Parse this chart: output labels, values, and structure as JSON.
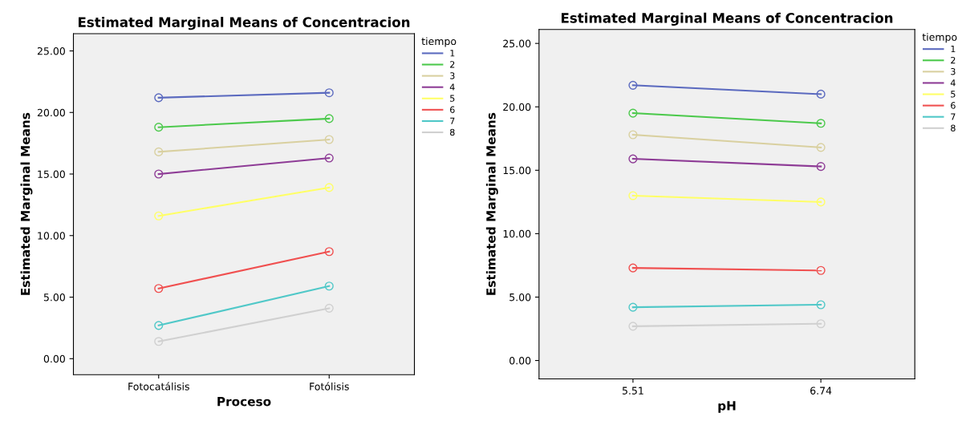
{
  "chart_data": [
    {
      "type": "line",
      "title": "Estimated Marginal Means of Concentracion",
      "xlabel": "Proceso",
      "ylabel": "Estimated Marginal Means",
      "legend_title": "tiempo",
      "legend": "right",
      "marker": "circle",
      "grid": false,
      "categories": [
        "Fotocatálisis",
        "Fotólisis"
      ],
      "ylim": [
        -1.3,
        26.4
      ],
      "yticks": [
        {
          "value": 0,
          "label": "0.00"
        },
        {
          "value": 5,
          "label": "5.00"
        },
        {
          "value": 10,
          "label": "10.00"
        },
        {
          "value": 15,
          "label": "15.00"
        },
        {
          "value": 20,
          "label": "20.00"
        },
        {
          "value": 25,
          "label": "25.00"
        }
      ],
      "series": [
        {
          "name": "1",
          "color": "#5b6abf",
          "values": [
            21.2,
            21.6
          ]
        },
        {
          "name": "2",
          "color": "#4cc94c",
          "values": [
            18.8,
            19.5
          ]
        },
        {
          "name": "3",
          "color": "#d9d0a0",
          "values": [
            16.8,
            17.8
          ]
        },
        {
          "name": "4",
          "color": "#8e3c96",
          "values": [
            15.0,
            16.3
          ]
        },
        {
          "name": "5",
          "color": "#ffff66",
          "values": [
            11.6,
            13.9
          ]
        },
        {
          "name": "6",
          "color": "#f05050",
          "values": [
            5.7,
            8.7
          ]
        },
        {
          "name": "7",
          "color": "#50c8c8",
          "values": [
            2.7,
            5.9
          ]
        },
        {
          "name": "8",
          "color": "#d0d0d0",
          "values": [
            1.4,
            4.1
          ]
        }
      ]
    },
    {
      "type": "line",
      "title": "Estimated Marginal Means of Concentracion",
      "xlabel": "pH",
      "ylabel": "Estimated Marginal Means",
      "legend_title": "tiempo",
      "legend": "right",
      "marker": "circle",
      "grid": false,
      "categories": [
        "5.51",
        "6.74"
      ],
      "ylim": [
        -1.45,
        26.1
      ],
      "yticks": [
        {
          "value": 0,
          "label": "0.00"
        },
        {
          "value": 5,
          "label": "5.00"
        },
        {
          "value": 10,
          "label": "10.00"
        },
        {
          "value": 15,
          "label": "15.00"
        },
        {
          "value": 20,
          "label": "20.00"
        },
        {
          "value": 25,
          "label": "25.00"
        }
      ],
      "series": [
        {
          "name": "1",
          "color": "#5b6abf",
          "values": [
            21.7,
            21.0
          ]
        },
        {
          "name": "2",
          "color": "#4cc94c",
          "values": [
            19.5,
            18.7
          ]
        },
        {
          "name": "3",
          "color": "#d9d0a0",
          "values": [
            17.8,
            16.8
          ]
        },
        {
          "name": "4",
          "color": "#8e3c96",
          "values": [
            15.9,
            15.3
          ]
        },
        {
          "name": "5",
          "color": "#ffff66",
          "values": [
            13.0,
            12.5
          ]
        },
        {
          "name": "6",
          "color": "#f05050",
          "values": [
            7.3,
            7.1
          ]
        },
        {
          "name": "7",
          "color": "#50c8c8",
          "values": [
            4.2,
            4.4
          ]
        },
        {
          "name": "8",
          "color": "#d0d0d0",
          "values": [
            2.7,
            2.9
          ]
        }
      ]
    }
  ]
}
